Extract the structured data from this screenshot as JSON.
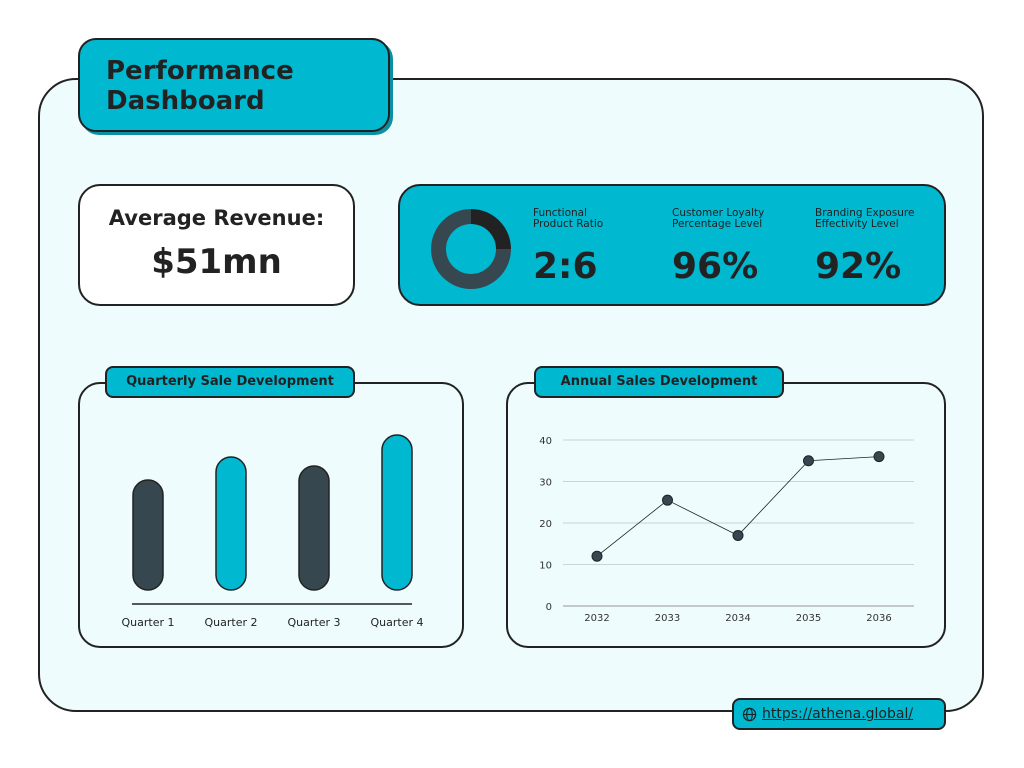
{
  "header": {
    "title_line1": "Performance",
    "title_line2": "Dashboard"
  },
  "revenue": {
    "label": "Average Revenue:",
    "value": "$51mn"
  },
  "kpis": [
    {
      "label_line1": "Functional",
      "label_line2": "Product Ratio",
      "value": "2:6"
    },
    {
      "label_line1": "Customer Loyalty",
      "label_line2": "Percentage Level",
      "value": "96%"
    },
    {
      "label_line1": "Branding Exposure",
      "label_line2": "Effectivity Level",
      "value": "92%"
    }
  ],
  "footer": {
    "link": "https://athena.global/",
    "icon": "globe-icon"
  },
  "colors": {
    "accent": "#00b8d0",
    "dark": "#37474f",
    "background": "#effcfd"
  },
  "chart_data": [
    {
      "type": "pie",
      "variant": "donut",
      "values": [
        2,
        6
      ],
      "colors": [
        "#222222",
        "#37474f"
      ]
    },
    {
      "type": "bar",
      "title": "Quarterly Sale Development",
      "categories": [
        "Quarter 1",
        "Quarter 2",
        "Quarter 3",
        "Quarter 4"
      ],
      "values": [
        110,
        133,
        124,
        155
      ],
      "colors": [
        "#37474f",
        "#00b8d0",
        "#37474f",
        "#00b8d0"
      ],
      "y_axis_shown": false
    },
    {
      "type": "line",
      "title": "Annual Sales Development",
      "x": [
        "2032",
        "2033",
        "2034",
        "2035",
        "2036"
      ],
      "values": [
        12,
        25.5,
        17,
        35,
        36
      ],
      "ylim": [
        0,
        40
      ],
      "yticks": [
        0,
        10,
        20,
        30,
        40
      ],
      "grid": true
    }
  ]
}
